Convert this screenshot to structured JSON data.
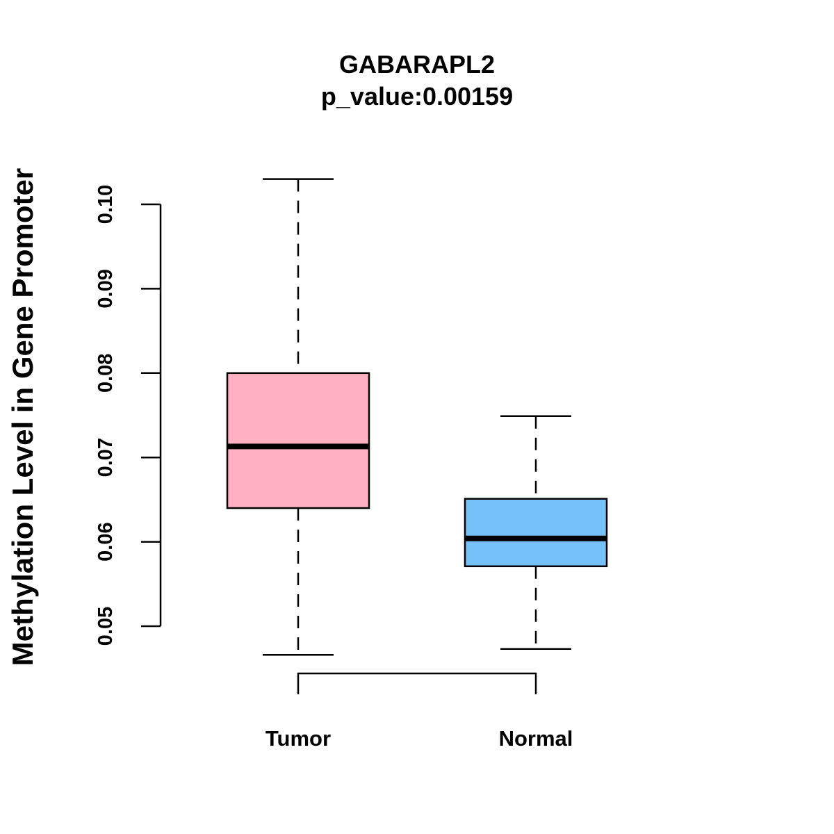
{
  "chart_data": {
    "type": "box",
    "title": "GABARAPL2",
    "subtitle": "p_value:0.00159",
    "xlabel": "",
    "ylabel": "Methylation Level in Gene Promoter",
    "ylim": [
      0.05,
      0.1
    ],
    "yticks": [
      "0.05",
      "0.06",
      "0.07",
      "0.08",
      "0.09",
      "0.10"
    ],
    "grid": false,
    "categories": [
      "Tumor",
      "Normal"
    ],
    "boxes": [
      {
        "name": "Tumor",
        "whisker_low": 0.0466,
        "q1": 0.064,
        "median": 0.0713,
        "q3": 0.08,
        "whisker_high": 0.103,
        "color": "#FDB1C3"
      },
      {
        "name": "Normal",
        "whisker_low": 0.0473,
        "q1": 0.0571,
        "median": 0.0604,
        "q3": 0.0651,
        "whisker_high": 0.0749,
        "color": "#77C1F9"
      }
    ],
    "significance_bracket": {
      "from": "Tumor",
      "to": "Normal"
    }
  }
}
